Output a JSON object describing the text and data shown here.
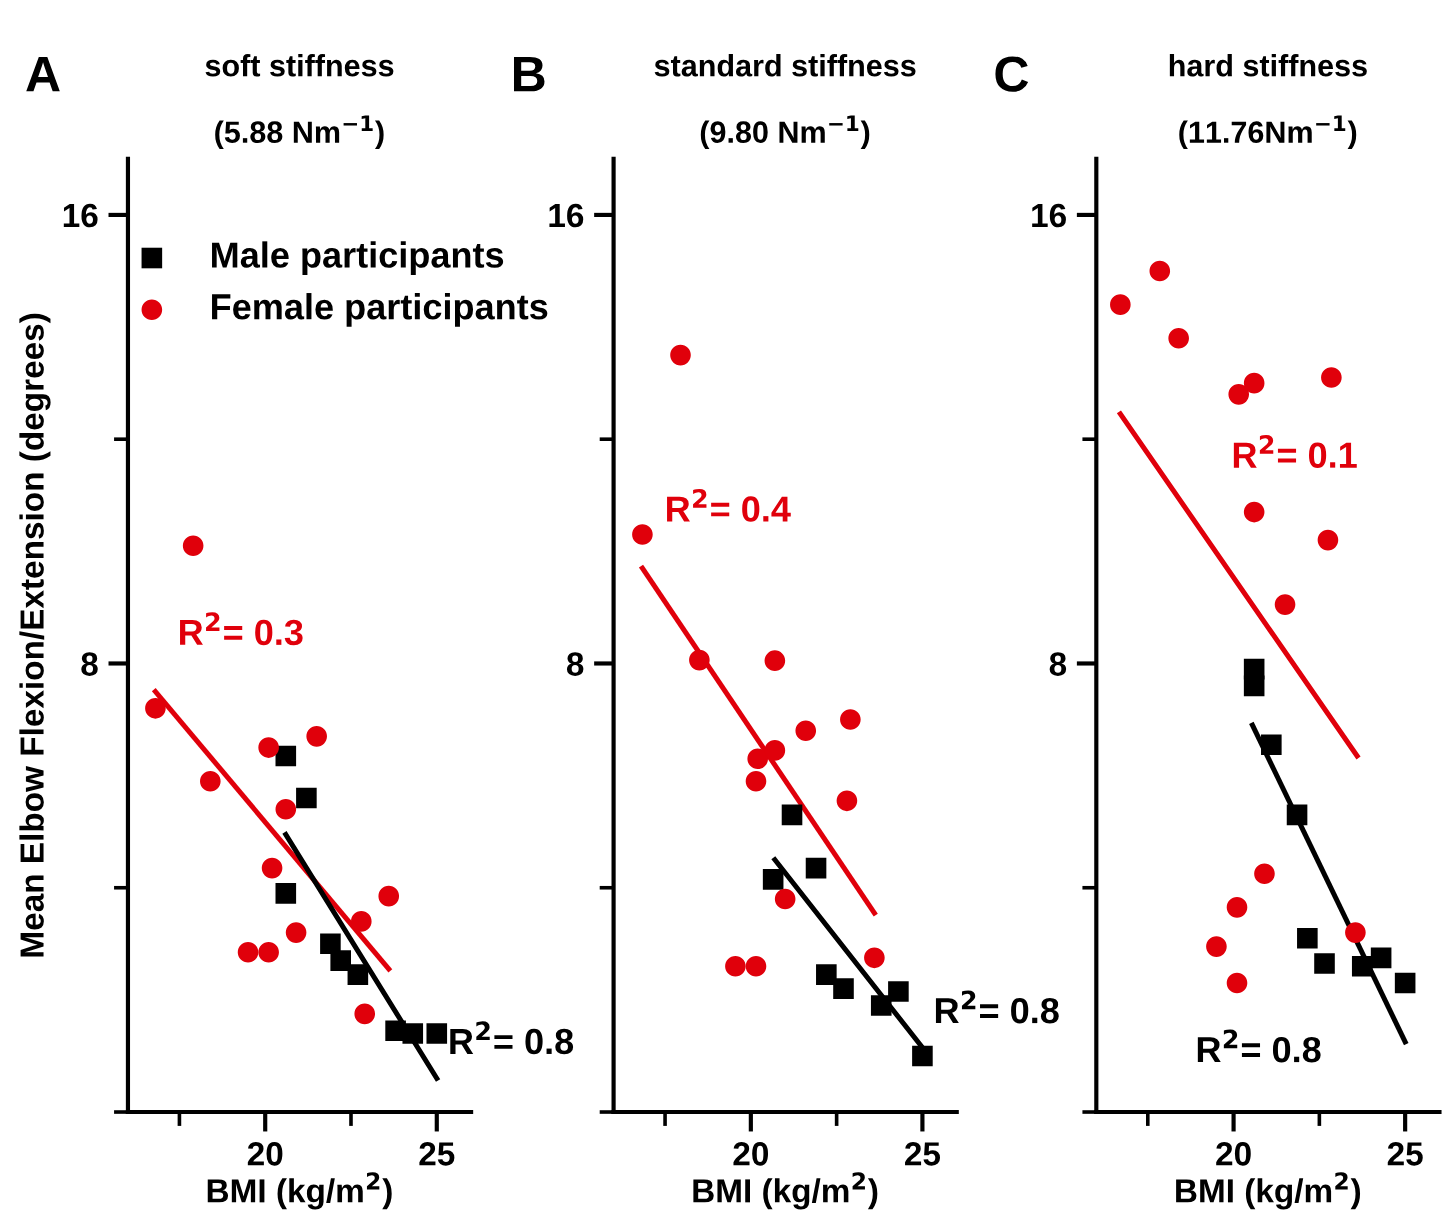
{
  "chart_data": [
    {
      "type": "scatter",
      "title": "soft stiffness",
      "subtitle": "(5.88 Nm$^{−1}$)",
      "xlabel": "BMI (kg/m$^{2}$)",
      "ylabel": "Mean Elbow Flexion/Extension (degrees)",
      "xlim": [
        16,
        26
      ],
      "ylim": [
        0,
        17
      ],
      "xticks": [
        20,
        25
      ],
      "yticks": [
        8,
        16
      ],
      "legend": "top right",
      "grid": false,
      "annotations": [
        "A",
        "R$^{2}$= 0.3",
        "R$^{2}$= 0.8"
      ],
      "series": [
        {
          "name": "Male participants",
          "color": "#000000",
          "marker": "square",
          "x": [
            20.6,
            21.2,
            20.6,
            21.9,
            22.2,
            22.7,
            23.8,
            24.3,
            25.0
          ],
          "values": [
            6.35,
            5.6,
            3.9,
            3.0,
            2.7,
            2.45,
            1.45,
            1.4,
            1.4
          ]
        },
        {
          "name": "Female participants",
          "color": "#e0000b",
          "marker": "circle",
          "x": [
            16.8,
            17.9,
            18.4,
            20.1,
            21.5,
            20.6,
            20.2,
            20.9,
            19.5,
            20.1,
            23.6,
            22.8,
            22.9
          ],
          "values": [
            7.2,
            10.1,
            5.9,
            6.5,
            6.7,
            5.4,
            4.35,
            3.2,
            2.85,
            2.85,
            3.85,
            3.4,
            1.75
          ]
        },
        {
          "type": "line",
          "color": "#e0000b",
          "x": [
            16.8,
            23.6
          ],
          "values": [
            7.5,
            2.55
          ]
        },
        {
          "type": "line",
          "color": "#000000",
          "x": [
            20.6,
            25.0
          ],
          "values": [
            4.95,
            0.6
          ]
        }
      ]
    },
    {
      "type": "scatter",
      "title": "standard stiffness",
      "subtitle": "(9.80 Nm$^{−1}$)",
      "xlabel": "BMI (kg/m$^{2}$)",
      "xlim": [
        16,
        26
      ],
      "ylim": [
        0,
        17
      ],
      "xticks": [
        20,
        25
      ],
      "yticks": [
        8,
        16
      ],
      "grid": false,
      "annotations": [
        "B",
        "R$^{2}$= 0.4",
        "R$^{2}$= 0.8"
      ],
      "series": [
        {
          "color": "#000000",
          "marker": "square",
          "x": [
            21.2,
            21.9,
            20.65,
            22.2,
            22.7,
            23.8,
            24.3,
            25.0
          ],
          "values": [
            5.3,
            4.35,
            4.15,
            2.45,
            2.2,
            1.9,
            2.15,
            1.0
          ]
        },
        {
          "color": "#e0000b",
          "marker": "circle",
          "x": [
            16.84,
            17.95,
            18.5,
            20.7,
            22.9,
            21.6,
            20.2,
            20.7,
            20.15,
            22.8,
            21.0,
            19.55,
            20.15,
            23.6
          ],
          "values": [
            10.3,
            13.5,
            8.06,
            8.05,
            7.0,
            6.8,
            6.3,
            6.45,
            5.9,
            5.55,
            3.8,
            2.6,
            2.6,
            2.75
          ]
        },
        {
          "type": "line",
          "color": "#e0000b",
          "x": [
            16.84,
            23.6
          ],
          "values": [
            9.7,
            3.55
          ]
        },
        {
          "type": "line",
          "color": "#000000",
          "x": [
            20.7,
            25.0
          ],
          "values": [
            4.5,
            1.15
          ]
        }
      ]
    },
    {
      "type": "scatter",
      "title": "hard stiffness",
      "subtitle": "(11.76Nm$^{−1}$)",
      "xlabel": "BMI (kg/m$^{2}$)",
      "xlim": [
        16,
        26
      ],
      "ylim": [
        0,
        17
      ],
      "xticks": [
        20,
        25
      ],
      "yticks": [
        8,
        16
      ],
      "grid": false,
      "annotations": [
        "C",
        "R$^{2}$= 0.1",
        "R$^{2}$= 0.8"
      ],
      "series": [
        {
          "color": "#000000",
          "marker": "square",
          "x": [
            20.6,
            20.6,
            21.1,
            21.85,
            22.15,
            22.65,
            23.75,
            24.3,
            25.0
          ],
          "values": [
            7.9,
            7.6,
            6.55,
            5.3,
            3.1,
            2.65,
            2.6,
            2.75,
            2.3
          ]
        },
        {
          "color": "#e0000b",
          "marker": "circle",
          "x": [
            16.7,
            17.85,
            18.4,
            20.15,
            20.6,
            22.85,
            20.6,
            22.75,
            21.5,
            20.9,
            20.1,
            19.5,
            20.1,
            23.55
          ],
          "values": [
            14.4,
            15.0,
            13.8,
            12.8,
            13.0,
            13.1,
            10.7,
            10.2,
            9.05,
            4.25,
            3.65,
            2.95,
            2.3,
            3.2
          ]
        },
        {
          "type": "line",
          "color": "#e0000b",
          "x": [
            16.7,
            23.6
          ],
          "values": [
            12.45,
            6.35
          ]
        },
        {
          "type": "line",
          "color": "#000000",
          "x": [
            20.55,
            25.0
          ],
          "values": [
            6.9,
            1.25
          ]
        }
      ]
    }
  ]
}
